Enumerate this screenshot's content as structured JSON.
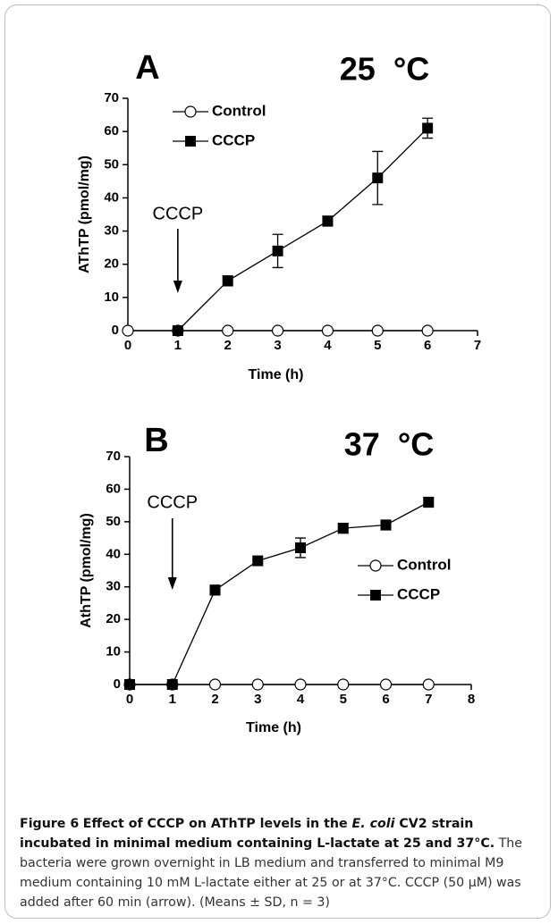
{
  "chart_data": [
    {
      "type": "line",
      "panel": "A",
      "title": "25  °C",
      "xlabel": "Time (h)",
      "ylabel": "AThTP (pmol/mg)",
      "xlim": [
        0,
        7
      ],
      "xticks": [
        0,
        1,
        2,
        3,
        4,
        5,
        6,
        7
      ],
      "ylim": [
        0,
        70
      ],
      "yticks": [
        0,
        10,
        20,
        30,
        40,
        50,
        60,
        70
      ],
      "legend": "upper left",
      "grid": false,
      "annotations": [
        {
          "text": "CCCP",
          "x": 1
        }
      ],
      "series": [
        {
          "name": "Control",
          "color": "#000000",
          "marker": "open-circle",
          "x": [
            0,
            1,
            2,
            3,
            4,
            5,
            6
          ],
          "values": [
            0,
            0,
            0,
            0,
            0,
            0,
            0
          ]
        },
        {
          "name": "CCCP",
          "color": "#000000",
          "marker": "filled-square",
          "x": [
            1,
            2,
            3,
            4,
            5,
            6
          ],
          "values": [
            0,
            15,
            24,
            33,
            46,
            61
          ],
          "errors": [
            0,
            1.5,
            5,
            1.5,
            8,
            3
          ]
        }
      ]
    },
    {
      "type": "line",
      "panel": "B",
      "title": "37  °C",
      "xlabel": "Time (h)",
      "ylabel": "AthTP (pmol/mg)",
      "xlim": [
        0,
        8
      ],
      "xticks": [
        0,
        1,
        2,
        3,
        4,
        5,
        6,
        7,
        8
      ],
      "ylim": [
        0,
        70
      ],
      "yticks": [
        0,
        10,
        20,
        30,
        40,
        50,
        60,
        70
      ],
      "legend": "center right",
      "grid": false,
      "annotations": [
        {
          "text": "CCCP",
          "x": 1
        }
      ],
      "series": [
        {
          "name": "Control",
          "color": "#000000",
          "marker": "open-circle",
          "x": [
            0,
            1,
            2,
            3,
            4,
            5,
            6,
            7
          ],
          "values": [
            0,
            0,
            0,
            0,
            0,
            0,
            0,
            0
          ]
        },
        {
          "name": "CCCP",
          "color": "#000000",
          "marker": "filled-square",
          "x": [
            0,
            1,
            2,
            3,
            4,
            5,
            6,
            7
          ],
          "values": [
            0,
            0,
            29,
            38,
            42,
            48,
            49,
            56
          ],
          "errors": [
            0,
            0,
            1.5,
            0,
            3,
            1.5,
            1.5,
            1.5
          ]
        }
      ]
    }
  ],
  "caption": {
    "label": "Figure 6",
    "title": [
      "Effect of CCCP on AThTP levels in the ",
      "E. coli",
      " CV2 strain incubated in minimal medium containing L-lactate at 25 and 37°C."
    ],
    "body": "The bacteria were grown overnight in LB medium and transferred to minimal M9 medium containing 10 mM L-lactate either at 25 or at 37°C. CCCP (50 µM) was added after 60 min (arrow). (Means ± SD, n = 3)"
  }
}
